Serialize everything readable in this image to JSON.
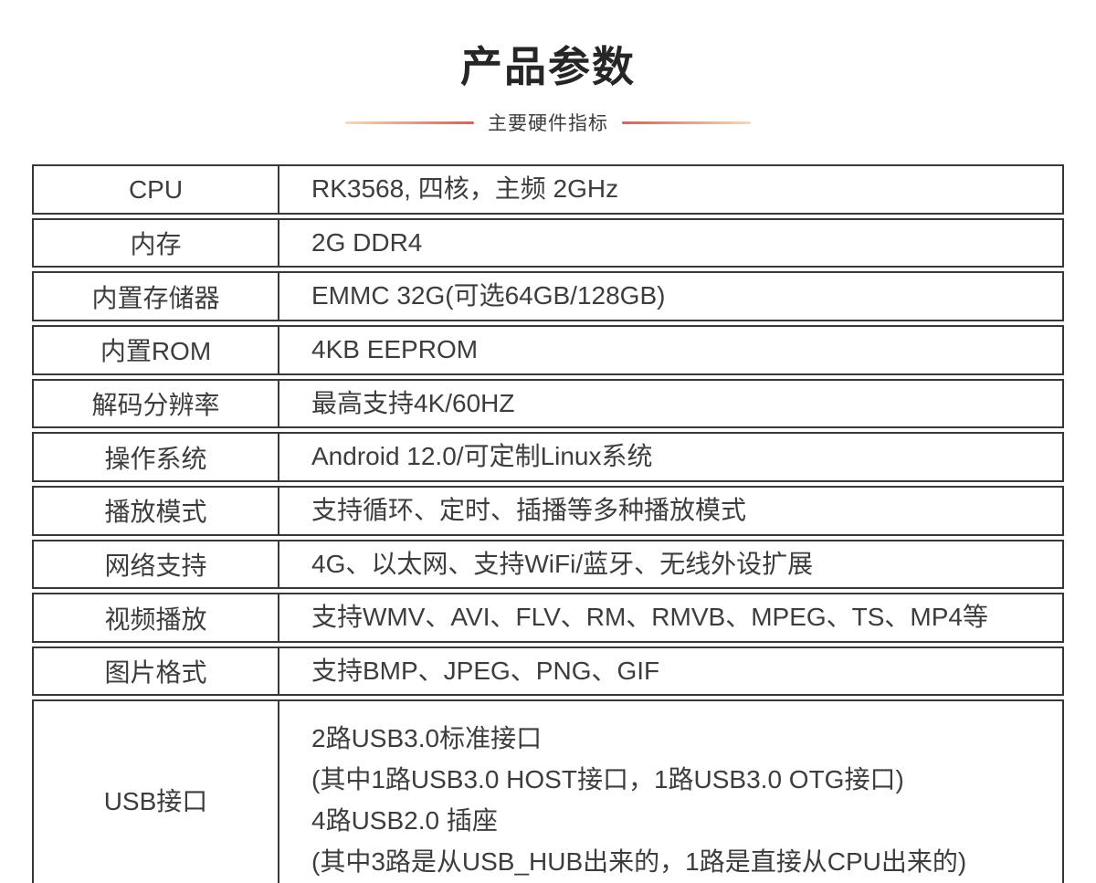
{
  "page": {
    "background": "#ffffff"
  },
  "header": {
    "title": "产品参数",
    "subtitle": "主要硬件指标",
    "accent_gradient_from": "#fbd9a9",
    "accent_gradient_to": "#f2554a"
  },
  "table": {
    "border_color": "#383838",
    "text_color": "#3d3d3d",
    "rows": [
      {
        "label": "CPU",
        "value_lines": [
          "RK3568, 四核，主频 2GHz"
        ]
      },
      {
        "label": "内存",
        "value_lines": [
          "2G DDR4"
        ]
      },
      {
        "label": "内置存储器",
        "value_lines": [
          "EMMC 32G(可选64GB/128GB)"
        ]
      },
      {
        "label": "内置ROM",
        "value_lines": [
          "4KB EEPROM"
        ]
      },
      {
        "label": "解码分辨率",
        "value_lines": [
          "最高支持4K/60HZ"
        ]
      },
      {
        "label": "操作系统",
        "value_lines": [
          "Android 12.0/可定制Linux系统"
        ]
      },
      {
        "label": "播放模式",
        "value_lines": [
          "支持循环、定时、插播等多种播放模式"
        ]
      },
      {
        "label": "网络支持",
        "value_lines": [
          "4G、以太网、支持WiFi/蓝牙、无线外设扩展"
        ]
      },
      {
        "label": "视频播放",
        "value_lines": [
          "支持WMV、AVI、FLV、RM、RMVB、MPEG、TS、MP4等"
        ]
      },
      {
        "label": "图片格式",
        "value_lines": [
          "支持BMP、JPEG、PNG、GIF"
        ]
      },
      {
        "label": "USB接口",
        "value_lines": [
          "2路USB3.0标准接口",
          "(其中1路USB3.0 HOST接口，1路USB3.0 OTG接口)",
          "4路USB2.0 插座",
          "(其中3路是从USB_HUB出来的，1路是直接从CPU出来的)"
        ]
      }
    ]
  }
}
